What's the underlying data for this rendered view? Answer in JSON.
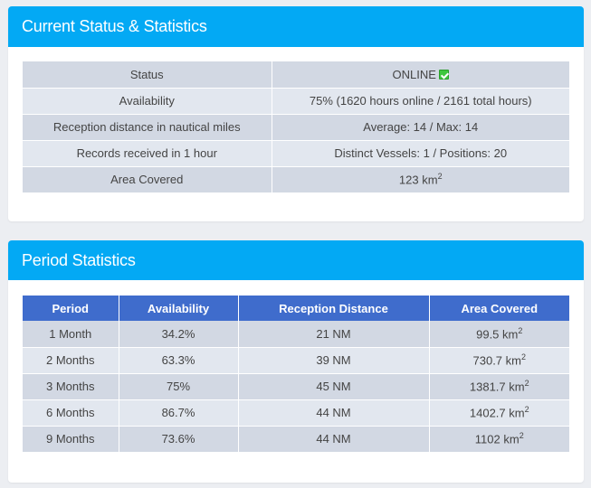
{
  "current": {
    "title": "Current Status & Statistics",
    "rows": [
      {
        "label": "Status",
        "value": "ONLINE"
      },
      {
        "label": "Availability",
        "value": "75% (1620 hours online / 2161 total hours)"
      },
      {
        "label": "Reception distance in nautical miles",
        "value": "Average: 14 / Max: 14"
      },
      {
        "label": "Records received in 1 hour",
        "value": "Distinct Vessels: 1 / Positions: 20"
      },
      {
        "label": "Area Covered",
        "value": "123 km",
        "unit_exp": "2"
      }
    ],
    "status_icon": "online-check-icon",
    "status_color": "#3ec73e"
  },
  "period": {
    "title": "Period Statistics",
    "headers": [
      "Period",
      "Availability",
      "Reception Distance",
      "Area Covered"
    ],
    "rows": [
      {
        "period": "1 Month",
        "availability": "34.2%",
        "distance": "21 NM",
        "area": "99.5 km",
        "exp": "2"
      },
      {
        "period": "2 Months",
        "availability": "63.3%",
        "distance": "39 NM",
        "area": "730.7 km",
        "exp": "2"
      },
      {
        "period": "3 Months",
        "availability": "75%",
        "distance": "45 NM",
        "area": "1381.7 km",
        "exp": "2"
      },
      {
        "period": "6 Months",
        "availability": "86.7%",
        "distance": "44 NM",
        "area": "1402.7 km",
        "exp": "2"
      },
      {
        "period": "9 Months",
        "availability": "73.6%",
        "distance": "44 NM",
        "area": "1102 km",
        "exp": "2"
      }
    ]
  },
  "colors": {
    "header_bg": "#03a9f4",
    "table_header_bg": "#3f6ccc",
    "row_dark": "#d2d8e3",
    "row_light": "#e2e7ef"
  }
}
